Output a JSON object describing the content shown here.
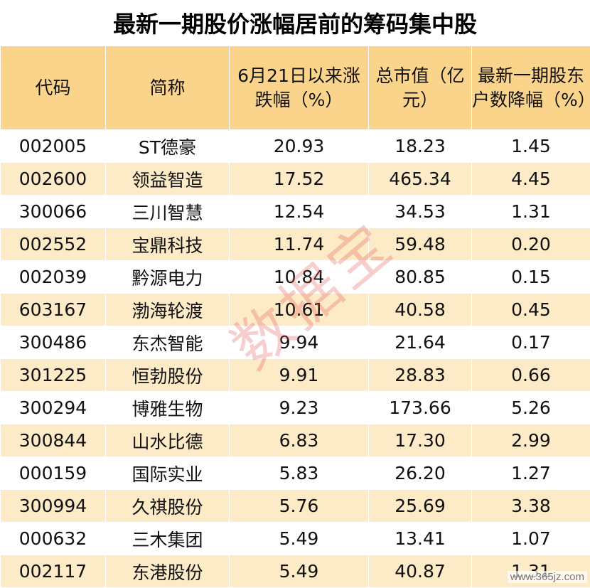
{
  "title": "最新一期股价涨幅居前的筹码集中股",
  "headers": [
    "代码",
    "简称",
    "6月21日以来涨跌幅（%）",
    "总市值（亿元）",
    "最新一期股东户数降幅（%）"
  ],
  "rows": [
    [
      "002005",
      "ST德豪",
      "20.93",
      "18.23",
      "1.45"
    ],
    [
      "002600",
      "领益智造",
      "17.52",
      "465.34",
      "4.45"
    ],
    [
      "300066",
      "三川智慧",
      "12.54",
      "34.53",
      "1.31"
    ],
    [
      "002552",
      "宝鼎科技",
      "11.74",
      "59.48",
      "0.20"
    ],
    [
      "002039",
      "黔源电力",
      "10.84",
      "80.85",
      "0.15"
    ],
    [
      "603167",
      "渤海轮渡",
      "10.61",
      "40.58",
      "0.45"
    ],
    [
      "300486",
      "东杰智能",
      "9.94",
      "21.64",
      "0.17"
    ],
    [
      "301225",
      "恒勃股份",
      "9.91",
      "28.83",
      "0.66"
    ],
    [
      "300294",
      "博雅生物",
      "9.23",
      "173.66",
      "5.26"
    ],
    [
      "300844",
      "山水比德",
      "6.83",
      "17.30",
      "2.99"
    ],
    [
      "000159",
      "国际实业",
      "5.83",
      "26.20",
      "1.27"
    ],
    [
      "300994",
      "久祺股份",
      "5.76",
      "25.69",
      "3.38"
    ],
    [
      "000632",
      "三木集团",
      "5.49",
      "13.41",
      "1.07"
    ],
    [
      "002117",
      "东港股份",
      "5.49",
      "40.87",
      "1.31"
    ]
  ],
  "watermark": "数据宝",
  "site_logo": "www.365jz.com"
}
